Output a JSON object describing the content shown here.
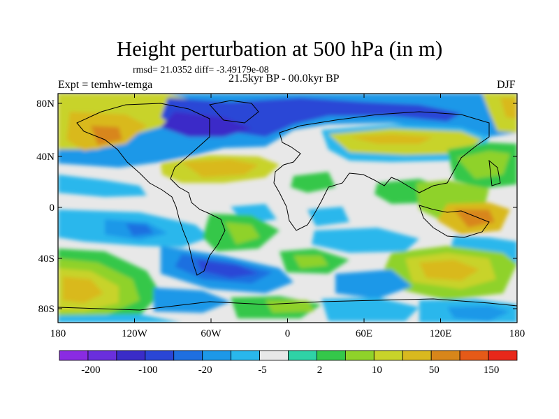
{
  "title": "Height perturbation at 500 hPa (in m)",
  "stats": "rmsd= 21.0352 diff= -3.49179e-08",
  "period": "21.5kyr BP - 00.0kyr BP",
  "experiment": "Expt = temhw-temga",
  "season": "DJF",
  "lat_ticks": [
    "80N",
    "40N",
    "0",
    "40S",
    "80S"
  ],
  "lon_ticks": [
    "180",
    "120W",
    "60W",
    "0",
    "60E",
    "120E",
    "180"
  ],
  "colorbar": {
    "colors": [
      "#8a2be2",
      "#6a2fdc",
      "#3a2cc8",
      "#2a46d6",
      "#1e6fe0",
      "#1d98e8",
      "#29b7ec",
      "#e8e8e8",
      "#2fd2a6",
      "#34c74a",
      "#8fd22a",
      "#c8d32a",
      "#d9b91f",
      "#d8861a",
      "#e55a18",
      "#e8281a"
    ],
    "labels": [
      "-200",
      "-100",
      "-20",
      "-5",
      "2",
      "10",
      "50",
      "150"
    ]
  }
}
